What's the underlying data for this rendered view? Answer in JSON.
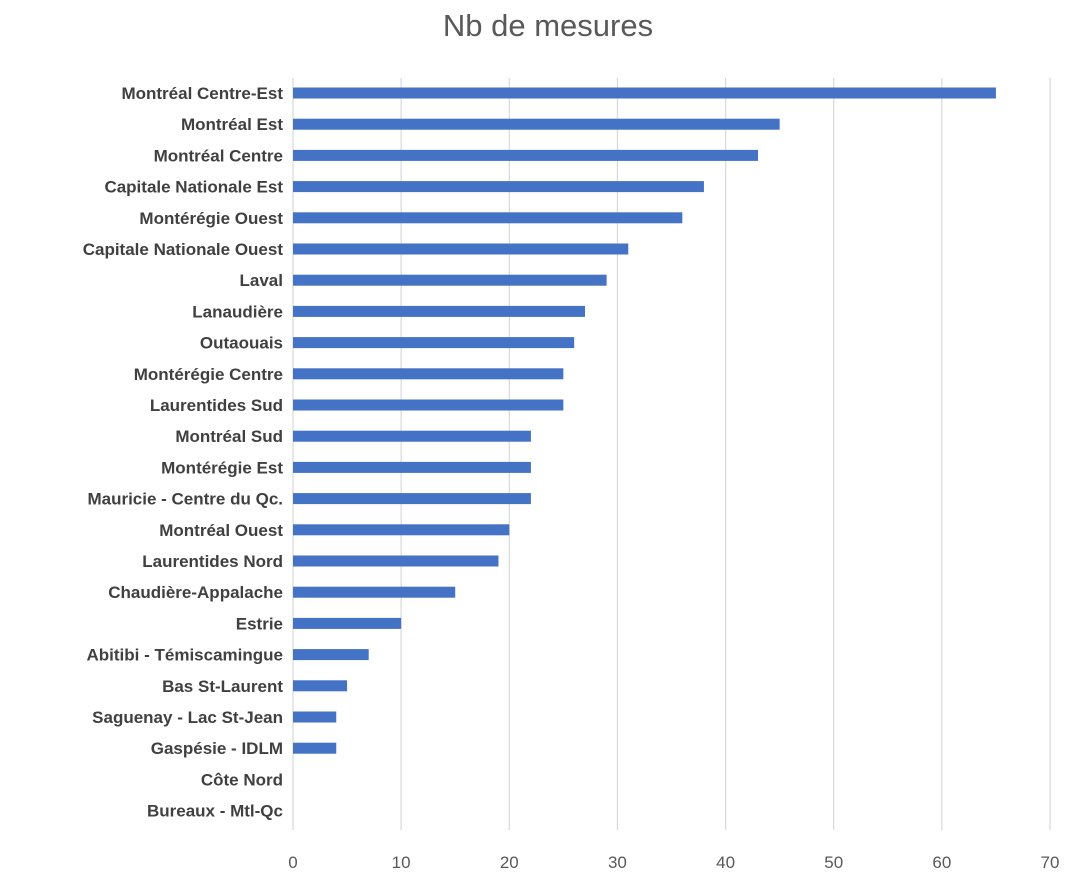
{
  "chart_data": {
    "type": "bar",
    "orientation": "horizontal",
    "title": "Nb de mesures",
    "categories": [
      "Montréal Centre-Est",
      "Montréal Est",
      "Montréal Centre",
      "Capitale Nationale Est",
      "Montérégie Ouest",
      "Capitale Nationale Ouest",
      "Laval",
      "Lanaudière",
      "Outaouais",
      "Montérégie Centre",
      "Laurentides Sud",
      "Montréal Sud",
      "Montérégie Est",
      "Mauricie - Centre du Qc.",
      "Montréal Ouest",
      "Laurentides Nord",
      "Chaudière-Appalache",
      "Estrie",
      "Abitibi - Témiscamingue",
      "Bas St-Laurent",
      "Saguenay - Lac St-Jean",
      "Gaspésie - IDLM",
      "Côte Nord",
      "Bureaux - Mtl-Qc"
    ],
    "values": [
      65,
      45,
      43,
      38,
      36,
      31,
      29,
      27,
      26,
      25,
      25,
      22,
      22,
      22,
      20,
      19,
      15,
      10,
      7,
      5,
      4,
      4,
      0,
      0
    ],
    "xlim": [
      0,
      70
    ],
    "xticks": [
      "0",
      "10",
      "20",
      "30",
      "40",
      "50",
      "60",
      "70"
    ],
    "xlabel": "",
    "ylabel": "",
    "grid": "vertical gridlines",
    "legend": "none",
    "bar_color": "#4472c4"
  }
}
